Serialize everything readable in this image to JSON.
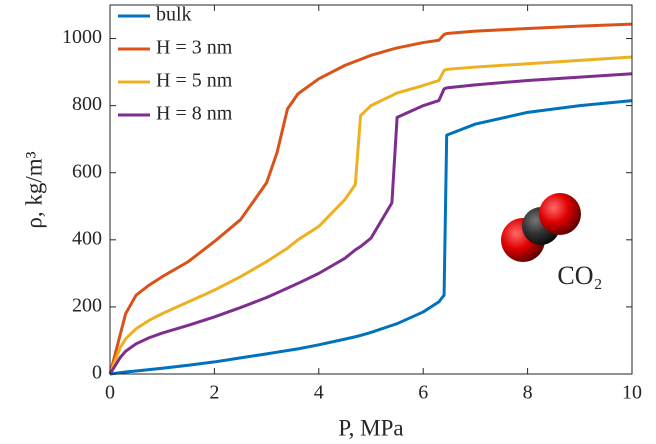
{
  "chart_data": {
    "type": "line",
    "xlabel": "P, MPa",
    "ylabel": "ρ, kg/m³",
    "annotation": "CO₂",
    "x": [
      0,
      0.1,
      0.2,
      0.3,
      0.5,
      0.75,
      1,
      1.5,
      2,
      2.5,
      3,
      3.2,
      3.4,
      3.6,
      4,
      4.5,
      4.7,
      4.8,
      5,
      5.4,
      5.5,
      6,
      6.3,
      6.4,
      6.45,
      7,
      8,
      9,
      10
    ],
    "series": [
      {
        "name": "bulk",
        "color": "#0072bd",
        "values": [
          0,
          2,
          4,
          6,
          9,
          13,
          17,
          26,
          36,
          48,
          60,
          65,
          70,
          75,
          87,
          104,
          111,
          115,
          124,
          145,
          150,
          185,
          215,
          235,
          712,
          745,
          780,
          800,
          815
        ]
      },
      {
        "name": "H = 3 nm",
        "color": "#d95319",
        "values": [
          0,
          60,
          120,
          180,
          235,
          265,
          290,
          335,
          395,
          460,
          570,
          660,
          790,
          835,
          880,
          920,
          932,
          938,
          950,
          968,
          972,
          988,
          995,
          1012,
          1015,
          1022,
          1030,
          1037,
          1043
        ]
      },
      {
        "name": "H = 5 nm",
        "color": "#edb120",
        "values": [
          0,
          40,
          80,
          105,
          135,
          160,
          180,
          215,
          250,
          290,
          335,
          355,
          375,
          400,
          440,
          520,
          565,
          770,
          800,
          830,
          838,
          860,
          875,
          905,
          908,
          915,
          925,
          935,
          945
        ]
      },
      {
        "name": "H = 8 nm",
        "color": "#7e2f8e",
        "values": [
          0,
          25,
          50,
          68,
          90,
          108,
          122,
          145,
          170,
          198,
          228,
          242,
          256,
          270,
          300,
          345,
          370,
          380,
          405,
          510,
          765,
          800,
          815,
          850,
          853,
          862,
          875,
          885,
          895
        ]
      }
    ],
    "xlim": [
      0,
      10
    ],
    "xticks": [
      0,
      2,
      4,
      6,
      8,
      10
    ],
    "ylim": [
      0,
      1100
    ],
    "yticks": [
      0,
      200,
      400,
      600,
      800,
      1000
    ],
    "legend": "upper-left",
    "grid": false
  }
}
